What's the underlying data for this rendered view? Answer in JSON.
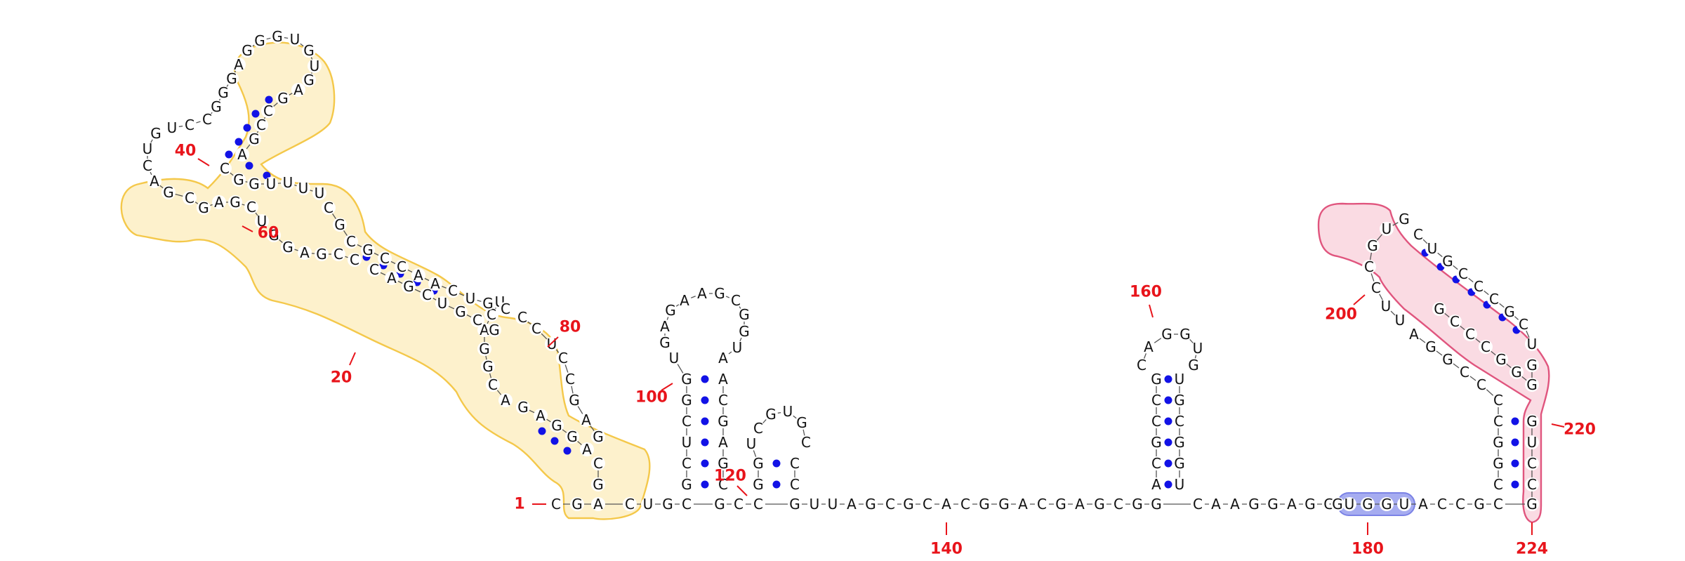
{
  "diagram": {
    "type": "rna-secondary-structure",
    "colors": {
      "nucleotide": "#111111",
      "backbone": "#555555",
      "base_pair": "#1212e6",
      "numbering": "#e8141b",
      "region_yellow_fill": "#fdf1cc",
      "region_yellow_stroke": "#f4c84a",
      "region_pink_fill": "#fadbe3",
      "region_pink_stroke": "#e0557e",
      "region_blue_fill": "#a6acf0",
      "region_blue_stroke": "#7b82e6"
    },
    "numbering": [
      {
        "id": "n1",
        "text": "1"
      },
      {
        "id": "n20",
        "text": "20"
      },
      {
        "id": "n40",
        "text": "40"
      },
      {
        "id": "n60",
        "text": "60"
      },
      {
        "id": "n80",
        "text": "80"
      },
      {
        "id": "n100",
        "text": "100"
      },
      {
        "id": "n120",
        "text": "120"
      },
      {
        "id": "n140",
        "text": "140"
      },
      {
        "id": "n160",
        "text": "160"
      },
      {
        "id": "n180",
        "text": "180"
      },
      {
        "id": "n200",
        "text": "200"
      },
      {
        "id": "n220",
        "text": "220"
      },
      {
        "id": "n224",
        "text": "224"
      }
    ],
    "regions": [
      {
        "name": "region-yellow-5prime-domain",
        "color": "yellow"
      },
      {
        "name": "region-pink-3prime-hairpin",
        "color": "pink"
      },
      {
        "name": "region-blue-ugg-motif",
        "color": "blue",
        "text": "UGGU"
      }
    ],
    "strands": [
      {
        "name": "strand-5prime-start",
        "seq": "CGA"
      },
      {
        "name": "strand-mid-linker",
        "seq": "CUGC"
      },
      {
        "name": "strand-linker-115",
        "seq": "GCC"
      },
      {
        "name": "strand-linker-main",
        "seq": "GUUAGCGCACGGACGAGCGG"
      },
      {
        "name": "strand-linker-post",
        "seq": "CAAGGAGGG"
      },
      {
        "name": "strand-ugg-motif",
        "seq": "UGGU"
      },
      {
        "name": "strand-linker-end",
        "seq": "ACCGC"
      },
      {
        "name": "strand-3prime-column",
        "seq": "GUCCG"
      },
      {
        "name": "strand-hairpin-100-stem-5",
        "seq": "GCUCGGU"
      },
      {
        "name": "strand-hairpin-100-loop",
        "seq": "GAGAAGCGGUA"
      },
      {
        "name": "strand-hairpin-100-stem-3",
        "seq": "ACGAGC"
      },
      {
        "name": "strand-hairpin-120-stem-5",
        "seq": "GGU"
      },
      {
        "name": "strand-hairpin-120-loop",
        "seq": "CGUGC"
      },
      {
        "name": "strand-hairpin-120-stem-3",
        "seq": "CC"
      },
      {
        "name": "strand-hairpin-160-stem-5",
        "seq": "ACGCCG"
      },
      {
        "name": "strand-hairpin-160-loop",
        "seq": "CAGGUG"
      },
      {
        "name": "strand-hairpin-160-stem-3",
        "seq": "UGCGGU"
      },
      {
        "name": "strand-domain5-base",
        "seq": "GC"
      },
      {
        "name": "strand-domain5-up-a",
        "seq": "AGGAG"
      },
      {
        "name": "strand-domain5-up-b",
        "seq": "ACGGACU"
      },
      {
        "name": "strand-domain5-up-c",
        "seq": "GCGUCGAC"
      },
      {
        "name": "strand-domain5-turn",
        "seq": "CCGAGG"
      },
      {
        "name": "strand-domain5-left-loop",
        "seq": "UCGAGCGACUG"
      },
      {
        "name": "strand-domain5-top-stem-5",
        "seq": "UCCGGGA"
      },
      {
        "name": "strand-domain5-top-loop",
        "seq": "GGGUGUG"
      },
      {
        "name": "strand-domain5-top-stem-3",
        "seq": "AGCCGA"
      },
      {
        "name": "strand-domain5-right-loop-top",
        "seq": "CGGUUUU"
      },
      {
        "name": "strand-domain5-right-inner",
        "seq": "CGCGCCAACUGC"
      },
      {
        "name": "strand-domain5-right-tail",
        "seq": "CCUCCGAG"
      },
      {
        "name": "strand-hairpin-200-stem-5",
        "seq": "CGGCCCCGGA"
      },
      {
        "name": "strand-hairpin-200-loop",
        "seq": "UUCCGUG"
      },
      {
        "name": "strand-hairpin-200-stem-3",
        "seq": "CUGCCCGCU"
      },
      {
        "name": "strand-hairpin-200-stem-4",
        "seq": "GGGGCCCG"
      }
    ]
  }
}
